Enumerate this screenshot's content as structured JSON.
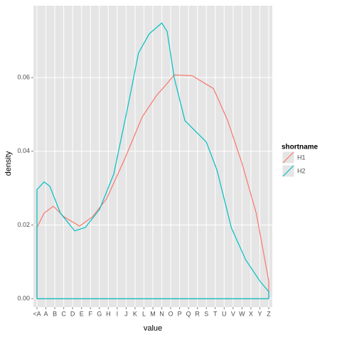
{
  "chart_data": {
    "type": "density",
    "xlabel": "value",
    "ylabel": "density",
    "xlim": [
      0.6,
      27.4
    ],
    "xticks": [
      {
        "value": 1,
        "label": "<A"
      },
      {
        "value": 2,
        "label": "A"
      },
      {
        "value": 3,
        "label": "B"
      },
      {
        "value": 4,
        "label": "C"
      },
      {
        "value": 5,
        "label": "D"
      },
      {
        "value": 6,
        "label": "E"
      },
      {
        "value": 7,
        "label": "F"
      },
      {
        "value": 8,
        "label": "G"
      },
      {
        "value": 9,
        "label": "H"
      },
      {
        "value": 10,
        "label": "I"
      },
      {
        "value": 11,
        "label": "J"
      },
      {
        "value": 12,
        "label": "K"
      },
      {
        "value": 13,
        "label": "L"
      },
      {
        "value": 14,
        "label": "M"
      },
      {
        "value": 15,
        "label": "N"
      },
      {
        "value": 16,
        "label": "O"
      },
      {
        "value": 17,
        "label": "P"
      },
      {
        "value": 18,
        "label": "Q"
      },
      {
        "value": 19,
        "label": "R"
      },
      {
        "value": 20,
        "label": "S"
      },
      {
        "value": 21,
        "label": "T"
      },
      {
        "value": 22,
        "label": "U"
      },
      {
        "value": 23,
        "label": "V"
      },
      {
        "value": 24,
        "label": "W"
      },
      {
        "value": 25,
        "label": "X"
      },
      {
        "value": 26,
        "label": "Y"
      },
      {
        "value": 27,
        "label": "Z"
      }
    ],
    "ylim": [
      -0.0023,
      0.0795
    ],
    "yticks": [
      {
        "value": 0,
        "label": "0.00"
      },
      0.02,
      0.04,
      0.06
    ],
    "grid": true,
    "legend_title": "shortname",
    "series": [
      {
        "name": "H1",
        "color": "#F8766D",
        "x": [
          1,
          1,
          1.8,
          2.83,
          4.03,
          5.78,
          7.22,
          8.81,
          10.8,
          12.8,
          14.4,
          15.6,
          16.4,
          18.4,
          20.8,
          22.4,
          24.0,
          25.6,
          27,
          27
        ],
        "values": [
          0,
          0.0193,
          0.0232,
          0.0251,
          0.0222,
          0.0197,
          0.0222,
          0.0271,
          0.0377,
          0.0493,
          0.0551,
          0.0584,
          0.0607,
          0.0605,
          0.057,
          0.0483,
          0.0367,
          0.0232,
          0.0048,
          0
        ]
      },
      {
        "name": "H2",
        "color": "#00BFC4",
        "x": [
          1,
          1,
          1.8,
          2.44,
          3.63,
          5.23,
          6.42,
          8.02,
          9.61,
          11.2,
          12.4,
          13.6,
          15.0,
          15.6,
          16.4,
          17.6,
          18.8,
          20.0,
          21.2,
          22.8,
          24.4,
          26.0,
          27,
          27
        ],
        "values": [
          0,
          0.0296,
          0.0317,
          0.0305,
          0.0232,
          0.0184,
          0.0193,
          0.0242,
          0.0338,
          0.0522,
          0.0667,
          0.0719,
          0.0748,
          0.0725,
          0.0599,
          0.0483,
          0.0454,
          0.0425,
          0.0348,
          0.0193,
          0.0106,
          0.0048,
          0.0019,
          0
        ]
      }
    ]
  }
}
